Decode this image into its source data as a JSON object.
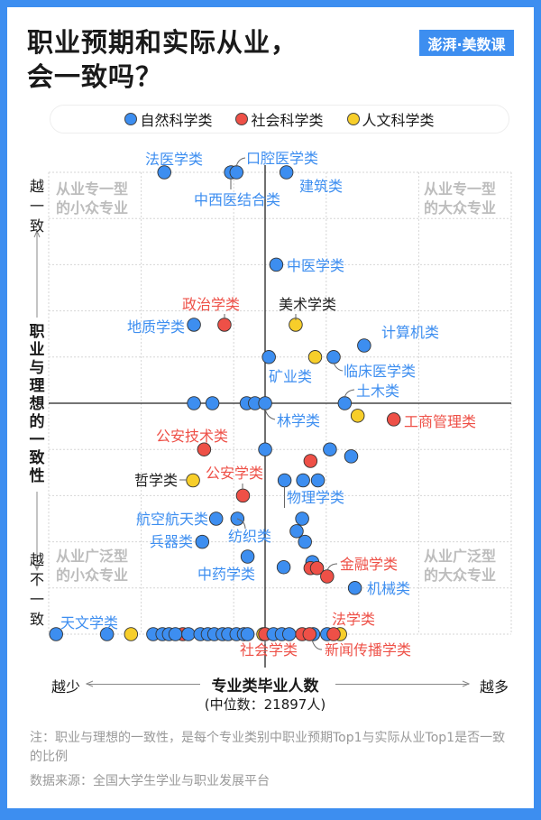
{
  "header": {
    "title_line1": "职业预期和实际从业，",
    "title_line2": "会一致吗？",
    "logo": "澎湃·美数课"
  },
  "legend": [
    {
      "label": "自然科学类",
      "color": "#3d8ef0"
    },
    {
      "label": "社会科学类",
      "color": "#ee5047"
    },
    {
      "label": "人文科学类",
      "color": "#f7ce2a"
    }
  ],
  "quadrants": {
    "top_left": [
      "从业专一型",
      "的小众专业"
    ],
    "top_right": [
      "从业专一型",
      "的大众专业"
    ],
    "bottom_left": [
      "从业广泛型",
      "的小众专业"
    ],
    "bottom_right": [
      "从业广泛型",
      "的大众专业"
    ]
  },
  "y_axis": {
    "top": "越一致",
    "label": "职业与理想的一致性",
    "bottom": "越不一致"
  },
  "x_axis": {
    "left": "越少",
    "label": "专业类毕业人数",
    "right": "越多",
    "median": "(中位数：21897人)"
  },
  "note": "注：职业与理想的一致性，是每个专业类别中职业预期Top1与实际从业Top1是否一致的比例",
  "source": "数据来源：全国大学生学业与职业发展平台",
  "chart_data": {
    "type": "scatter",
    "xlabel": "专业类毕业人数",
    "ylabel": "职业与理想的一致性",
    "x_median_label": "(中位数：21897人)",
    "ylim": [
      0,
      100
    ],
    "grid": true,
    "legend_position": "top",
    "colors": {
      "自然科学类": "#3d8ef0",
      "社会科学类": "#ee5047",
      "人文科学类": "#f7ce2a"
    },
    "points": [
      {
        "name": "法医学类",
        "cat": "自然科学类",
        "x": 1.25,
        "y": 100
      },
      {
        "name": "中西医结合类",
        "cat": "自然科学类",
        "x": 1.97,
        "y": 100
      },
      {
        "name": "口腔医学类",
        "cat": "自然科学类",
        "x": 2.03,
        "y": 100
      },
      {
        "name": "建筑类",
        "cat": "自然科学类",
        "x": 2.57,
        "y": 100
      },
      {
        "name": "中医学类",
        "cat": "自然科学类",
        "x": 2.46,
        "y": 80
      },
      {
        "name": "地质学类",
        "cat": "自然科学类",
        "x": 1.57,
        "y": 67
      },
      {
        "name": "政治学类",
        "cat": "社会科学类",
        "x": 1.9,
        "y": 67
      },
      {
        "name": "美术学类",
        "cat": "人文科学类",
        "x": 2.67,
        "y": 67
      },
      {
        "name": "计算机类",
        "cat": "自然科学类",
        "x": 3.41,
        "y": 62.5
      },
      {
        "name": "矿业类",
        "cat": "自然科学类",
        "x": 2.38,
        "y": 60
      },
      {
        "cat": "人文科学类",
        "x": 2.88,
        "y": 60
      },
      {
        "name": "临床医学类",
        "cat": "自然科学类",
        "x": 3.08,
        "y": 60
      },
      {
        "cat": "自然科学类",
        "x": 1.57,
        "y": 50
      },
      {
        "cat": "自然科学类",
        "x": 1.77,
        "y": 50
      },
      {
        "cat": "自然科学类",
        "x": 2.14,
        "y": 50
      },
      {
        "cat": "自然科学类",
        "x": 2.23,
        "y": 50
      },
      {
        "name": "林学类",
        "cat": "自然科学类",
        "x": 2.34,
        "y": 50
      },
      {
        "name": "土木类",
        "cat": "自然科学类",
        "x": 3.2,
        "y": 50
      },
      {
        "cat": "人文科学类",
        "x": 3.34,
        "y": 47.3
      },
      {
        "name": "工商管理类",
        "cat": "社会科学类",
        "x": 3.73,
        "y": 46.5
      },
      {
        "name": "公安技术类",
        "cat": "社会科学类",
        "x": 1.68,
        "y": 40
      },
      {
        "cat": "自然科学类",
        "x": 2.34,
        "y": 40
      },
      {
        "cat": "自然科学类",
        "x": 3.04,
        "y": 40
      },
      {
        "cat": "自然科学类",
        "x": 3.27,
        "y": 38.5
      },
      {
        "cat": "社会科学类",
        "x": 2.83,
        "y": 37.5
      },
      {
        "name": "哲学类",
        "cat": "人文科学类",
        "x": 1.56,
        "y": 33.3
      },
      {
        "name": "物理学类",
        "cat": "自然科学类",
        "x": 2.55,
        "y": 33.3
      },
      {
        "cat": "自然科学类",
        "x": 2.75,
        "y": 33.3
      },
      {
        "cat": "自然科学类",
        "x": 2.91,
        "y": 33.3
      },
      {
        "name": "公安学类",
        "cat": "社会科学类",
        "x": 2.1,
        "y": 30
      },
      {
        "name": "航空航天类",
        "cat": "自然科学类",
        "x": 1.81,
        "y": 25
      },
      {
        "name": "纺织类",
        "cat": "自然科学类",
        "x": 2.04,
        "y": 25
      },
      {
        "cat": "自然科学类",
        "x": 2.74,
        "y": 25
      },
      {
        "cat": "自然科学类",
        "x": 2.68,
        "y": 22.3
      },
      {
        "cat": "自然科学类",
        "x": 2.77,
        "y": 20
      },
      {
        "name": "兵器类",
        "cat": "自然科学类",
        "x": 1.66,
        "y": 20
      },
      {
        "name": "中药学类",
        "cat": "自然科学类",
        "x": 2.15,
        "y": 16.8
      },
      {
        "cat": "自然科学类",
        "x": 2.54,
        "y": 14.5
      },
      {
        "cat": "自然科学类",
        "x": 2.85,
        "y": 15.6
      },
      {
        "cat": "社会科学类",
        "x": 2.83,
        "y": 14.3
      },
      {
        "cat": "社会科学类",
        "x": 2.9,
        "y": 14.3
      },
      {
        "name": "金融学类",
        "cat": "社会科学类",
        "x": 3.01,
        "y": 12.5
      },
      {
        "name": "机械类",
        "cat": "自然科学类",
        "x": 3.31,
        "y": 10
      },
      {
        "name": "天文学类",
        "cat": "自然科学类",
        "x": 0.08,
        "y": 0
      },
      {
        "cat": "自然科学类",
        "x": 0.63,
        "y": 0
      },
      {
        "cat": "人文科学类",
        "x": 0.89,
        "y": 0
      },
      {
        "cat": "自然科学类",
        "x": 1.13,
        "y": 0
      },
      {
        "cat": "自然科学类",
        "x": 1.23,
        "y": 0
      },
      {
        "cat": "自然科学类",
        "x": 1.3,
        "y": 0
      },
      {
        "cat": "社会科学类",
        "x": 1.45,
        "y": 0
      },
      {
        "cat": "自然科学类",
        "x": 1.37,
        "y": 0
      },
      {
        "cat": "自然科学类",
        "x": 1.51,
        "y": 0
      },
      {
        "cat": "自然科学类",
        "x": 1.64,
        "y": 0
      },
      {
        "cat": "自然科学类",
        "x": 1.72,
        "y": 0
      },
      {
        "cat": "自然科学类",
        "x": 1.79,
        "y": 0
      },
      {
        "cat": "自然科学类",
        "x": 1.88,
        "y": 0
      },
      {
        "cat": "自然科学类",
        "x": 1.94,
        "y": 0
      },
      {
        "cat": "自然科学类",
        "x": 2.03,
        "y": 0
      },
      {
        "cat": "自然科学类",
        "x": 2.11,
        "y": 0
      },
      {
        "cat": "自然科学类",
        "x": 2.15,
        "y": 0
      },
      {
        "cat": "人文科学类",
        "x": 2.32,
        "y": 0
      },
      {
        "name": "社会学类",
        "cat": "社会科学类",
        "x": 2.34,
        "y": 0
      },
      {
        "cat": "自然科学类",
        "x": 2.43,
        "y": 0
      },
      {
        "cat": "自然科学类",
        "x": 2.52,
        "y": 0
      },
      {
        "cat": "自然科学类",
        "x": 2.6,
        "y": 0
      },
      {
        "cat": "社会科学类",
        "x": 2.74,
        "y": 0
      },
      {
        "cat": "自然科学类",
        "x": 2.86,
        "y": 0
      },
      {
        "name": "新闻传播学类",
        "cat": "社会科学类",
        "x": 2.82,
        "y": 0
      },
      {
        "cat": "自然科学类",
        "x": 3.01,
        "y": 0
      },
      {
        "cat": "人文科学类",
        "x": 3.15,
        "y": 0
      },
      {
        "name": "法学类",
        "cat": "社会科学类",
        "x": 3.08,
        "y": 0
      }
    ]
  }
}
